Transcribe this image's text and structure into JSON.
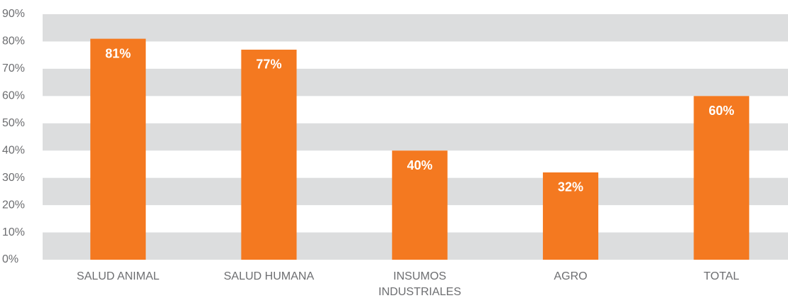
{
  "chart_data": {
    "type": "bar",
    "categories": [
      "SALUD ANIMAL",
      "SALUD HUMANA",
      "INSUMOS INDUSTRIALES",
      "AGRO",
      "TOTAL"
    ],
    "values": [
      81,
      77,
      40,
      32,
      60
    ],
    "value_labels": [
      "81%",
      "77%",
      "40%",
      "32%",
      "60%"
    ],
    "color": "#f47920",
    "ylim": [
      0,
      90
    ],
    "yticks": [
      {
        "value": 0,
        "label": "0%"
      },
      {
        "value": 10,
        "label": "10%"
      },
      {
        "value": 20,
        "label": "20%"
      },
      {
        "value": 30,
        "label": "30%"
      },
      {
        "value": 40,
        "label": "40%"
      },
      {
        "value": 50,
        "label": "50%"
      },
      {
        "value": 60,
        "label": "60%"
      },
      {
        "value": 70,
        "label": "70%"
      },
      {
        "value": 80,
        "label": "80%"
      },
      {
        "value": 90,
        "label": "90%"
      }
    ],
    "grid": true
  }
}
